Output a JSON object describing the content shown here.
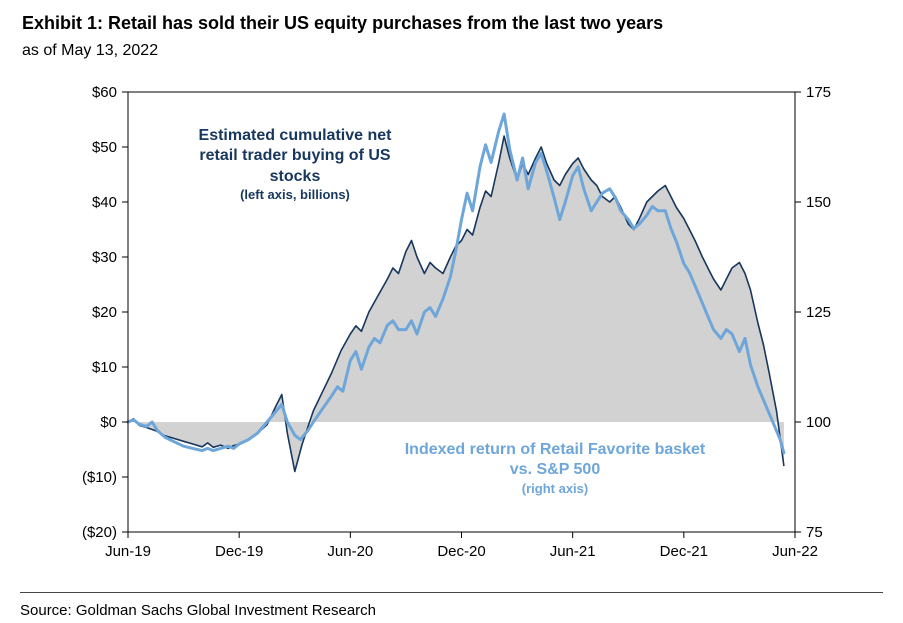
{
  "header": {
    "title": "Exhibit 1: Retail has sold their US equity purchases from the last two years",
    "subtitle": "as of May 13, 2022"
  },
  "source": "Source: Goldman Sachs Global Investment Research",
  "chart_data": {
    "type": "line",
    "title": "Exhibit 1: Retail has sold their US equity purchases from the last two years",
    "subtitle": "as of May 13, 2022",
    "grid": false,
    "legend_position": "in-plot annotations",
    "x_axis": {
      "min": 0,
      "max": 36,
      "x_unit": "months since Jun-2019",
      "tick_positions": [
        0,
        6,
        12,
        18,
        24,
        30,
        36
      ],
      "tick_labels": [
        "Jun-19",
        "Dec-19",
        "Jun-20",
        "Dec-20",
        "Jun-21",
        "Dec-21",
        "Jun-22"
      ]
    },
    "left_axis": {
      "min": -20,
      "max": 60,
      "tick_values": [
        60,
        50,
        40,
        30,
        20,
        10,
        0,
        -10,
        -20
      ],
      "tick_labels": [
        "$60",
        "$50",
        "$40",
        "$30",
        "$20",
        "$10",
        "$0",
        "($10)",
        "($20)"
      ]
    },
    "right_axis": {
      "min": 75,
      "max": 175,
      "tick_values": [
        175,
        150,
        125,
        100,
        75
      ],
      "tick_labels": [
        "175",
        "150",
        "125",
        "100",
        "75"
      ]
    },
    "series": [
      {
        "name": "Estimated cumulative net retail trader buying of US stocks (left axis, billions)",
        "axis": "left",
        "style": "area",
        "color": "#17375D",
        "fill": "#D2D2D2",
        "points": [
          [
            0,
            0
          ],
          [
            0.3,
            0.6
          ],
          [
            0.6,
            -0.6
          ],
          [
            1,
            -1
          ],
          [
            1.5,
            -1.6
          ],
          [
            2,
            -2.5
          ],
          [
            2.5,
            -3
          ],
          [
            3,
            -3.5
          ],
          [
            3.5,
            -4
          ],
          [
            4,
            -4.5
          ],
          [
            4.3,
            -3.8
          ],
          [
            4.6,
            -4.6
          ],
          [
            5,
            -4.2
          ],
          [
            5.4,
            -4.8
          ],
          [
            5.7,
            -4.3
          ],
          [
            6,
            -4
          ],
          [
            6.5,
            -3.2
          ],
          [
            7,
            -2
          ],
          [
            7.5,
            -0.5
          ],
          [
            8,
            3
          ],
          [
            8.3,
            5
          ],
          [
            8.6,
            -2
          ],
          [
            9,
            -9
          ],
          [
            9.4,
            -4
          ],
          [
            9.7,
            -1
          ],
          [
            10,
            2
          ],
          [
            10.5,
            5.5
          ],
          [
            11,
            9
          ],
          [
            11.5,
            13
          ],
          [
            12,
            16
          ],
          [
            12.3,
            17.5
          ],
          [
            12.6,
            16.5
          ],
          [
            13,
            20
          ],
          [
            13.5,
            23
          ],
          [
            14,
            26
          ],
          [
            14.3,
            28
          ],
          [
            14.6,
            27
          ],
          [
            15,
            31
          ],
          [
            15.3,
            33
          ],
          [
            15.6,
            30
          ],
          [
            16,
            27
          ],
          [
            16.3,
            29
          ],
          [
            16.6,
            28
          ],
          [
            17,
            27
          ],
          [
            17.4,
            30
          ],
          [
            17.7,
            32
          ],
          [
            18,
            33
          ],
          [
            18.3,
            35
          ],
          [
            18.6,
            34
          ],
          [
            19,
            39
          ],
          [
            19.3,
            42
          ],
          [
            19.6,
            41
          ],
          [
            20,
            47
          ],
          [
            20.3,
            52
          ],
          [
            20.6,
            48
          ],
          [
            21,
            44
          ],
          [
            21.3,
            47
          ],
          [
            21.6,
            45
          ],
          [
            22,
            48
          ],
          [
            22.3,
            50
          ],
          [
            22.6,
            47
          ],
          [
            23,
            44
          ],
          [
            23.3,
            43
          ],
          [
            23.6,
            45
          ],
          [
            24,
            47
          ],
          [
            24.3,
            48
          ],
          [
            24.6,
            46
          ],
          [
            25,
            44
          ],
          [
            25.3,
            43
          ],
          [
            25.6,
            41
          ],
          [
            26,
            40
          ],
          [
            26.3,
            41
          ],
          [
            26.6,
            39
          ],
          [
            27,
            36
          ],
          [
            27.3,
            35
          ],
          [
            27.6,
            37
          ],
          [
            28,
            40
          ],
          [
            28.3,
            41
          ],
          [
            28.6,
            42
          ],
          [
            29,
            43
          ],
          [
            29.3,
            41
          ],
          [
            29.6,
            39
          ],
          [
            30,
            37
          ],
          [
            30.3,
            35
          ],
          [
            30.6,
            33
          ],
          [
            31,
            30
          ],
          [
            31.3,
            28
          ],
          [
            31.6,
            26
          ],
          [
            32,
            24
          ],
          [
            32.3,
            26
          ],
          [
            32.6,
            28
          ],
          [
            33,
            29
          ],
          [
            33.3,
            27
          ],
          [
            33.6,
            24
          ],
          [
            34,
            18
          ],
          [
            34.3,
            14
          ],
          [
            34.6,
            9
          ],
          [
            35,
            2
          ],
          [
            35.2,
            -3
          ],
          [
            35.4,
            -8
          ]
        ]
      },
      {
        "name": "Indexed return of Retail Favorite basket vs. S&P 500 (right axis)",
        "axis": "right",
        "style": "line",
        "color": "#6EA6DA",
        "points": [
          [
            0,
            100
          ],
          [
            0.3,
            100.5
          ],
          [
            0.6,
            99.5
          ],
          [
            1,
            99
          ],
          [
            1.3,
            100
          ],
          [
            1.6,
            98
          ],
          [
            2,
            96.5
          ],
          [
            2.5,
            95.5
          ],
          [
            3,
            94.5
          ],
          [
            3.5,
            94
          ],
          [
            4,
            93.5
          ],
          [
            4.3,
            94
          ],
          [
            4.6,
            93.5
          ],
          [
            5,
            94
          ],
          [
            5.4,
            94.5
          ],
          [
            5.7,
            94
          ],
          [
            6,
            95
          ],
          [
            6.5,
            96
          ],
          [
            7,
            97.5
          ],
          [
            7.5,
            100
          ],
          [
            8,
            102.5
          ],
          [
            8.3,
            104
          ],
          [
            8.6,
            100
          ],
          [
            9,
            97
          ],
          [
            9.3,
            96
          ],
          [
            9.7,
            98
          ],
          [
            10,
            100
          ],
          [
            10.5,
            103
          ],
          [
            11,
            106
          ],
          [
            11.3,
            108
          ],
          [
            11.6,
            107
          ],
          [
            12,
            114
          ],
          [
            12.3,
            116
          ],
          [
            12.6,
            112
          ],
          [
            13,
            117
          ],
          [
            13.3,
            119
          ],
          [
            13.6,
            118
          ],
          [
            14,
            122
          ],
          [
            14.3,
            123
          ],
          [
            14.6,
            121
          ],
          [
            15,
            121
          ],
          [
            15.3,
            123
          ],
          [
            15.6,
            120
          ],
          [
            16,
            125
          ],
          [
            16.3,
            126
          ],
          [
            16.6,
            124
          ],
          [
            17,
            128
          ],
          [
            17.4,
            133
          ],
          [
            17.7,
            139
          ],
          [
            18,
            146
          ],
          [
            18.3,
            152
          ],
          [
            18.6,
            148
          ],
          [
            19,
            158
          ],
          [
            19.3,
            163
          ],
          [
            19.6,
            159
          ],
          [
            20,
            166
          ],
          [
            20.3,
            170
          ],
          [
            20.6,
            162
          ],
          [
            21,
            155
          ],
          [
            21.3,
            160
          ],
          [
            21.6,
            153
          ],
          [
            22,
            159
          ],
          [
            22.3,
            161
          ],
          [
            22.6,
            157
          ],
          [
            23,
            151
          ],
          [
            23.3,
            146
          ],
          [
            23.6,
            150
          ],
          [
            24,
            156
          ],
          [
            24.3,
            158
          ],
          [
            24.6,
            153
          ],
          [
            25,
            148
          ],
          [
            25.3,
            150
          ],
          [
            25.6,
            152
          ],
          [
            26,
            153
          ],
          [
            26.3,
            151
          ],
          [
            26.6,
            148
          ],
          [
            27,
            146
          ],
          [
            27.3,
            144
          ],
          [
            27.6,
            145
          ],
          [
            28,
            147
          ],
          [
            28.3,
            149
          ],
          [
            28.6,
            148
          ],
          [
            29,
            148
          ],
          [
            29.3,
            144
          ],
          [
            29.6,
            141
          ],
          [
            30,
            136
          ],
          [
            30.3,
            134
          ],
          [
            30.6,
            131
          ],
          [
            31,
            127
          ],
          [
            31.3,
            124
          ],
          [
            31.6,
            121
          ],
          [
            32,
            119
          ],
          [
            32.3,
            121
          ],
          [
            32.6,
            120
          ],
          [
            33,
            116
          ],
          [
            33.3,
            119
          ],
          [
            33.6,
            113
          ],
          [
            34,
            108
          ],
          [
            34.3,
            105
          ],
          [
            34.6,
            102
          ],
          [
            35,
            98
          ],
          [
            35.2,
            96
          ],
          [
            35.4,
            93
          ]
        ]
      }
    ],
    "annotations": [
      {
        "color": "#17375D",
        "lines": [
          "Estimated cumulative net",
          "retail trader buying of US",
          "stocks",
          "(left axis, billions)"
        ]
      },
      {
        "color": "#6EA6DA",
        "lines": [
          "Indexed return of Retail Favorite basket",
          "vs. S&P 500",
          "(right axis)"
        ]
      }
    ]
  }
}
